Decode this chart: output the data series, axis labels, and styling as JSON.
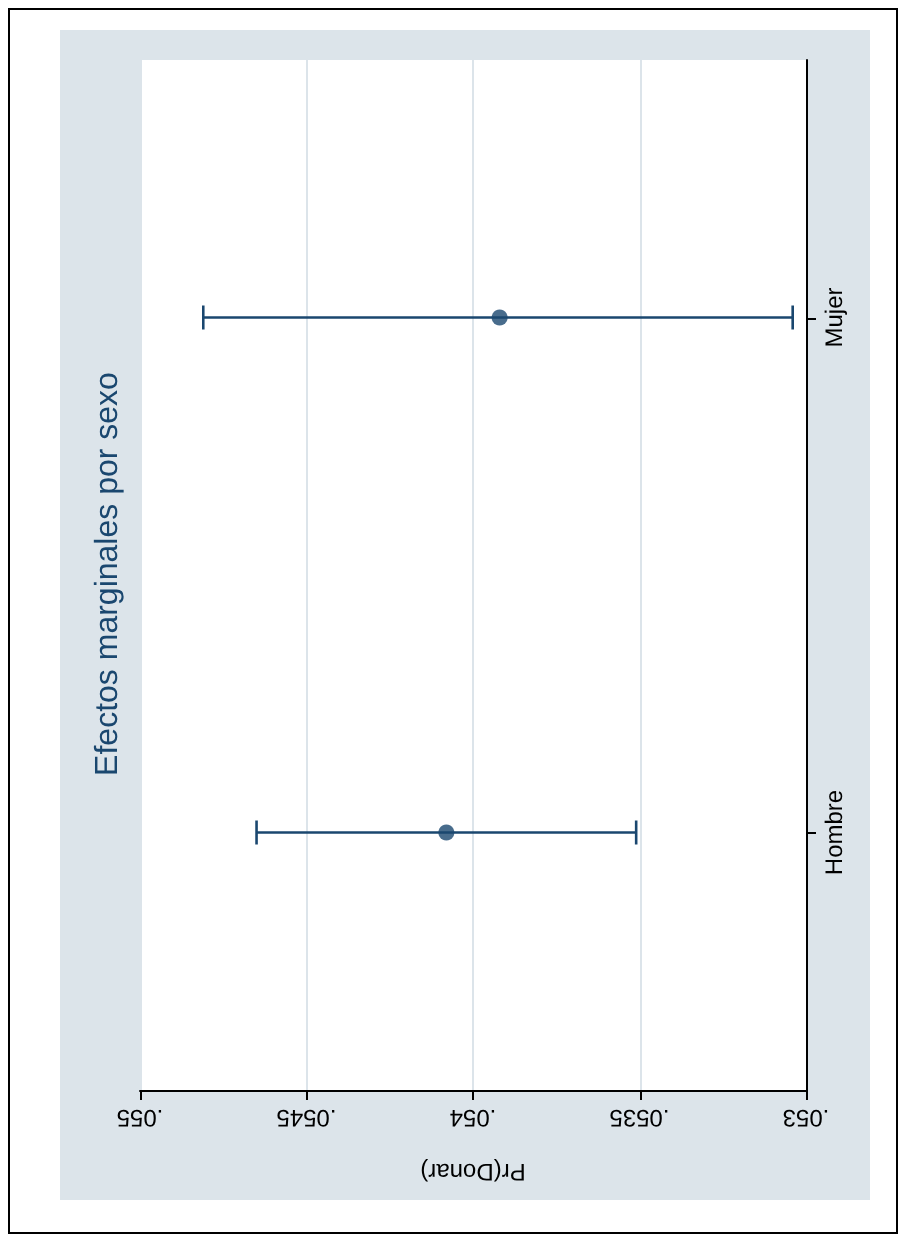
{
  "chart_data": {
    "type": "scatter",
    "orientation": "horizontal",
    "title": "Efectos marginales por sexo",
    "xlabel": "Pr(Donar)",
    "categories": [
      "Mujer",
      "Hombre"
    ],
    "values": [
      0.05392,
      0.05408
    ],
    "errors": [
      [
        0.05304,
        0.05481
      ],
      [
        0.05351,
        0.05465
      ]
    ],
    "color": "#1a476f",
    "marker": "circle",
    "grid": "x",
    "xlim": [
      0.055,
      0.053
    ],
    "xticks": [
      {
        "value": 0.055,
        "label": ".055"
      },
      {
        "value": 0.0545,
        "label": ".0545"
      },
      {
        "value": 0.054,
        "label": ".054"
      },
      {
        "value": 0.0535,
        "label": ".0535"
      },
      {
        "value": 0.053,
        "label": ".053"
      }
    ]
  }
}
